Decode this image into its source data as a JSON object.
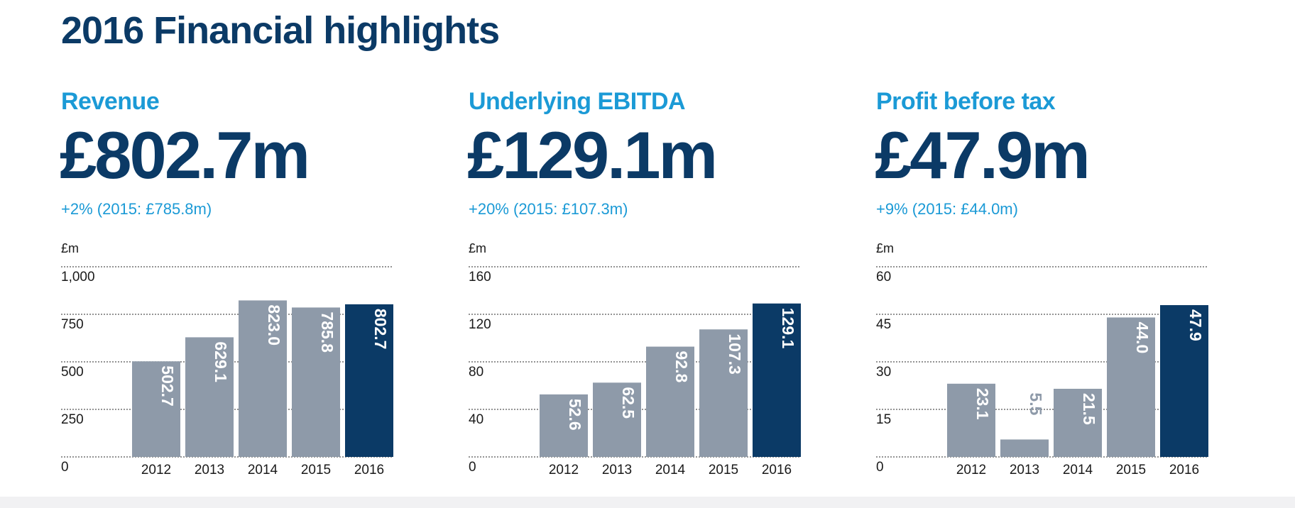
{
  "page": {
    "title": "2016 Financial highlights"
  },
  "colors": {
    "accent": "#1b9ad6",
    "navy": "#0b3a66",
    "grey_bar": "#8e9aa9"
  },
  "kpis": [
    {
      "title": "Revenue",
      "value": "£802.7m",
      "change": "+2% (2015: £785.8m)"
    },
    {
      "title": "Underlying EBITDA",
      "value": "£129.1m",
      "change": "+20% (2015: £107.3m)"
    },
    {
      "title": "Profit before tax",
      "value": "£47.9m",
      "change": "+9% (2015: £44.0m)"
    }
  ],
  "chart_data": [
    {
      "type": "bar",
      "unit_label": "£m",
      "categories": [
        "2012",
        "2013",
        "2014",
        "2015",
        "2016"
      ],
      "values": [
        502.7,
        629.1,
        823.0,
        785.8,
        802.7
      ],
      "value_labels": [
        "502.7",
        "629.1",
        "823.0",
        "785.8",
        "802.7"
      ],
      "ylim": [
        0,
        1000
      ],
      "yticks": [
        0,
        250,
        500,
        750,
        1000
      ],
      "ytick_labels": [
        "0",
        "250",
        "500",
        "750",
        "1,000"
      ],
      "highlight_index": 4,
      "grid": true
    },
    {
      "type": "bar",
      "unit_label": "£m",
      "categories": [
        "2012",
        "2013",
        "2014",
        "2015",
        "2016"
      ],
      "values": [
        52.6,
        62.5,
        92.8,
        107.3,
        129.1
      ],
      "value_labels": [
        "52.6",
        "62.5",
        "92.8",
        "107.3",
        "129.1"
      ],
      "ylim": [
        0,
        160
      ],
      "yticks": [
        0,
        40,
        80,
        120,
        160
      ],
      "ytick_labels": [
        "0",
        "40",
        "80",
        "120",
        "160"
      ],
      "highlight_index": 4,
      "grid": true
    },
    {
      "type": "bar",
      "unit_label": "£m",
      "categories": [
        "2012",
        "2013",
        "2014",
        "2015",
        "2016"
      ],
      "values": [
        23.1,
        5.5,
        21.5,
        44.0,
        47.9
      ],
      "value_labels": [
        "23.1",
        "5.5",
        "21.5",
        "44.0",
        "47.9"
      ],
      "ylim": [
        0,
        60
      ],
      "yticks": [
        0,
        15,
        30,
        45,
        60
      ],
      "ytick_labels": [
        "0",
        "15",
        "30",
        "45",
        "60"
      ],
      "highlight_index": 4,
      "grid": true
    }
  ]
}
